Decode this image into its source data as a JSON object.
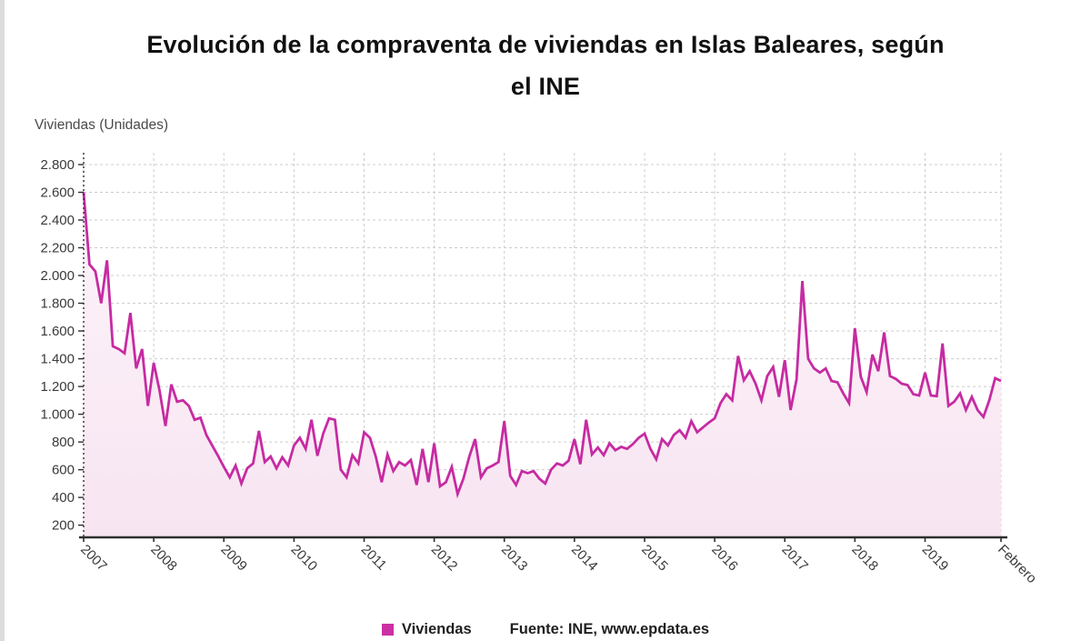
{
  "title": {
    "lines": [
      "Evolución de la compraventa de viviendas en Islas Baleares, según",
      "el INE"
    ]
  },
  "y_axis_title": "Viviendas (Unidades)",
  "legend": {
    "series_label": "Viviendas",
    "source": "Fuente: INE, www.epdata.es"
  },
  "colors": {
    "line": "#c62ba2",
    "legend_swatch": "#cc2fa4",
    "fill_top": "#fdf3fa",
    "fill_bottom": "#f7e5f1",
    "grid": "#cccccc",
    "axis": "#2e2e2e",
    "tick_text": "#3a3a3a"
  },
  "chart_data": {
    "type": "area",
    "title": "Evolución de la compraventa de viviendas en Islas Baleares, según el INE",
    "series_name": "Viviendas",
    "ylabel": "Viviendas (Unidades)",
    "ylim": [
      200,
      2800
    ],
    "grid": true,
    "legend_position": "bottom",
    "x_start": "2007-01",
    "x_end": "2020-02",
    "x_ticks": [
      {
        "label": "2007",
        "month_index": 0
      },
      {
        "label": "2008",
        "month_index": 12
      },
      {
        "label": "2009",
        "month_index": 24
      },
      {
        "label": "2010",
        "month_index": 36
      },
      {
        "label": "2011",
        "month_index": 48
      },
      {
        "label": "2012",
        "month_index": 60
      },
      {
        "label": "2013",
        "month_index": 72
      },
      {
        "label": "2014",
        "month_index": 84
      },
      {
        "label": "2015",
        "month_index": 96
      },
      {
        "label": "2016",
        "month_index": 108
      },
      {
        "label": "2017",
        "month_index": 120
      },
      {
        "label": "2018",
        "month_index": 132
      },
      {
        "label": "2019",
        "month_index": 144
      },
      {
        "label": "Febrero",
        "month_index": 157
      }
    ],
    "y_ticks": [
      200,
      400,
      600,
      800,
      1000,
      1200,
      1400,
      1600,
      1800,
      2000,
      2200,
      2400,
      2600,
      2800
    ],
    "y_tick_labels": [
      "200",
      "400",
      "600",
      "800",
      "1.000",
      "1.200",
      "1.400",
      "1.600",
      "1.800",
      "2.000",
      "2.200",
      "2.400",
      "2.600",
      "2.800"
    ],
    "values": [
      2600,
      2080,
      2030,
      1800,
      2110,
      1490,
      1470,
      1440,
      1730,
      1330,
      1470,
      1060,
      1370,
      1170,
      915,
      1215,
      1090,
      1100,
      1060,
      960,
      975,
      850,
      775,
      700,
      620,
      545,
      630,
      500,
      610,
      645,
      880,
      655,
      695,
      610,
      690,
      630,
      775,
      830,
      750,
      960,
      700,
      860,
      970,
      960,
      600,
      545,
      705,
      645,
      870,
      830,
      695,
      510,
      710,
      590,
      655,
      630,
      670,
      490,
      750,
      510,
      790,
      480,
      510,
      620,
      425,
      535,
      695,
      820,
      545,
      610,
      630,
      655,
      950,
      555,
      490,
      590,
      575,
      590,
      535,
      500,
      600,
      645,
      630,
      665,
      820,
      640,
      960,
      710,
      760,
      705,
      790,
      740,
      765,
      750,
      785,
      830,
      860,
      750,
      675,
      820,
      775,
      850,
      885,
      830,
      950,
      870,
      905,
      940,
      970,
      1080,
      1145,
      1100,
      1420,
      1245,
      1310,
      1220,
      1100,
      1275,
      1340,
      1125,
      1390,
      1030,
      1250,
      1960,
      1400,
      1330,
      1300,
      1330,
      1240,
      1230,
      1150,
      1080,
      1620,
      1270,
      1160,
      1430,
      1310,
      1590,
      1275,
      1255,
      1220,
      1210,
      1145,
      1135,
      1300,
      1135,
      1130,
      1510,
      1060,
      1090,
      1150,
      1030,
      1125,
      1030,
      980,
      1100,
      1260,
      1240
    ]
  }
}
